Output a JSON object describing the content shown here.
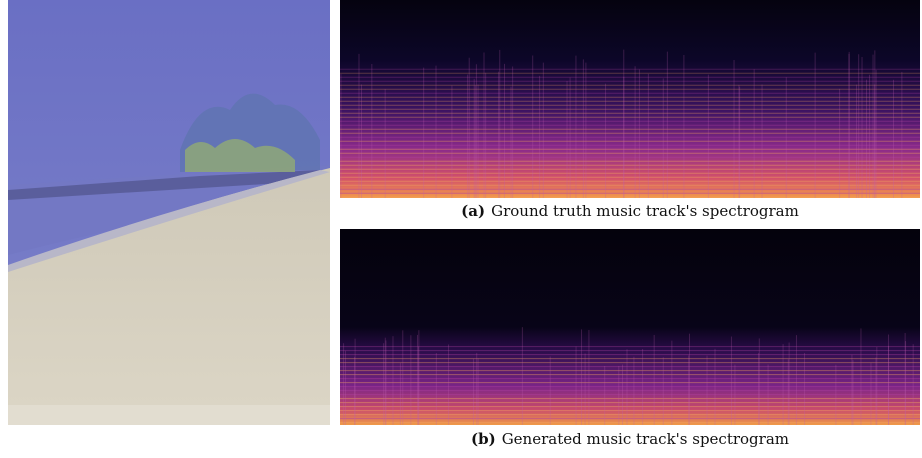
{
  "figure": {
    "panels": [
      {
        "label": "(a)",
        "caption": "Ground truth music track's spectrogram"
      },
      {
        "label": "(b)",
        "caption": "Generated music track's spectrogram"
      }
    ]
  }
}
